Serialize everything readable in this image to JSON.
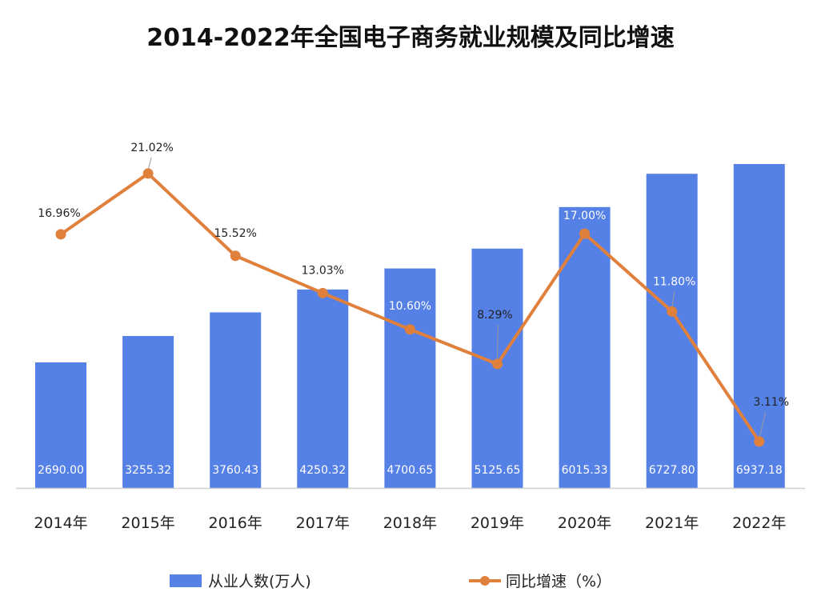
{
  "chart_data": {
    "type": "bar+line",
    "title": "2014-2022年全国电子商务就业规模及同比增速",
    "categories": [
      "2014年",
      "2015年",
      "2016年",
      "2017年",
      "2018年",
      "2019年",
      "2020年",
      "2021年",
      "2022年"
    ],
    "series": [
      {
        "name": "从业人数(万人)",
        "type": "bar",
        "color": "#5580e6",
        "values": [
          2690.0,
          3255.32,
          3760.43,
          4250.32,
          4700.65,
          5125.65,
          6015.33,
          6727.8,
          6937.18
        ],
        "labels": [
          "2690.00",
          "3255.32",
          "3760.43",
          "4250.32",
          "4700.65",
          "5125.65",
          "6015.33",
          "6727.80",
          "6937.18"
        ]
      },
      {
        "name": "同比增速（%）",
        "type": "line",
        "color": "#e0803d",
        "values": [
          16.96,
          21.02,
          15.52,
          13.03,
          10.6,
          8.29,
          17.0,
          11.8,
          3.11
        ],
        "labels": [
          "16.96%",
          "21.02%",
          "15.52%",
          "13.03%",
          "10.60%",
          "8.29%",
          "17.00%",
          "11.80%",
          "3.11%"
        ]
      }
    ],
    "legend": "bottom",
    "grid": false
  }
}
